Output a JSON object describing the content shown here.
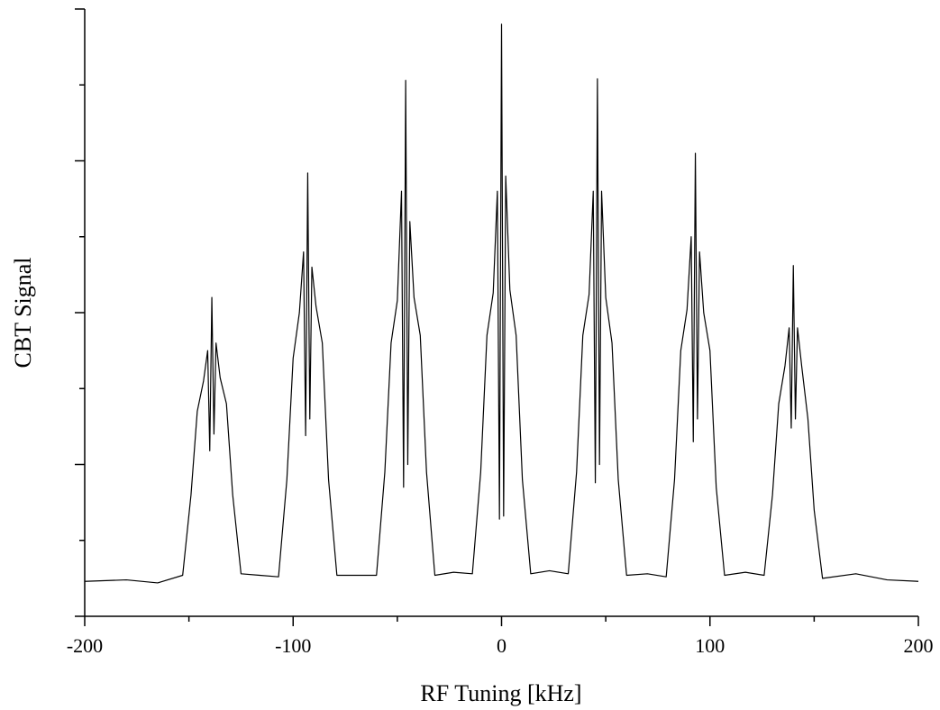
{
  "chart_data": {
    "type": "line",
    "xlabel": "RF Tuning [kHz]",
    "ylabel": "CBT Signal",
    "color": "#000000",
    "x": [
      -200,
      -180,
      -165,
      -153,
      -149,
      -146,
      -143,
      -141,
      -140,
      -139,
      -138,
      -137,
      -135,
      -132,
      -129,
      -125,
      -116,
      -107,
      -103,
      -100,
      -97,
      -95,
      -94,
      -93,
      -92,
      -91,
      -89,
      -86,
      -83,
      -79,
      -70,
      -60,
      -56,
      -53,
      -50,
      -48,
      -47,
      -46,
      -45,
      -44,
      -42,
      -39,
      -36,
      -32,
      -23,
      -14,
      -10,
      -7,
      -4,
      -2,
      -1,
      0,
      1,
      2,
      4,
      7,
      10,
      14,
      23,
      32,
      36,
      39,
      42,
      44,
      45,
      46,
      47,
      48,
      50,
      53,
      56,
      60,
      70,
      79,
      83,
      86,
      89,
      91,
      92,
      93,
      94,
      95,
      97,
      100,
      103,
      107,
      117,
      126,
      130,
      133,
      136,
      138,
      139,
      140,
      141,
      142,
      144,
      147,
      150,
      154,
      170,
      185,
      200
    ],
    "values": [
      0.23,
      0.24,
      0.22,
      0.27,
      0.8,
      1.35,
      1.55,
      1.75,
      1.09,
      2.1,
      1.2,
      1.8,
      1.57,
      1.4,
      0.8,
      0.28,
      0.27,
      0.26,
      0.9,
      1.7,
      2.0,
      2.4,
      1.19,
      2.92,
      1.3,
      2.3,
      2.04,
      1.8,
      0.9,
      0.27,
      0.27,
      0.27,
      0.95,
      1.8,
      2.08,
      2.8,
      0.85,
      3.53,
      1.0,
      2.6,
      2.1,
      1.85,
      0.95,
      0.27,
      0.29,
      0.28,
      0.95,
      1.85,
      2.13,
      2.8,
      0.64,
      3.9,
      0.66,
      2.9,
      2.15,
      1.85,
      0.9,
      0.28,
      0.3,
      0.28,
      0.95,
      1.85,
      2.12,
      2.8,
      0.88,
      3.54,
      1.0,
      2.8,
      2.1,
      1.8,
      0.9,
      0.27,
      0.28,
      0.26,
      0.9,
      1.75,
      2.02,
      2.5,
      1.15,
      3.05,
      1.3,
      2.4,
      2.0,
      1.75,
      0.85,
      0.27,
      0.29,
      0.27,
      0.8,
      1.4,
      1.65,
      1.9,
      1.24,
      2.31,
      1.3,
      1.9,
      1.65,
      1.3,
      0.7,
      0.25,
      0.28,
      0.24,
      0.23
    ],
    "xlim": [
      -200,
      200
    ],
    "xticks": [
      -200,
      -100,
      0,
      100,
      200
    ],
    "xminor": [
      -150,
      -50,
      50,
      150
    ],
    "ylim": [
      0,
      4
    ],
    "yticks": [
      0,
      1,
      2,
      3,
      4
    ],
    "yminor": [
      0.5,
      1.5,
      2.5,
      3.5
    ],
    "ytick_labels": false,
    "grid": false
  }
}
